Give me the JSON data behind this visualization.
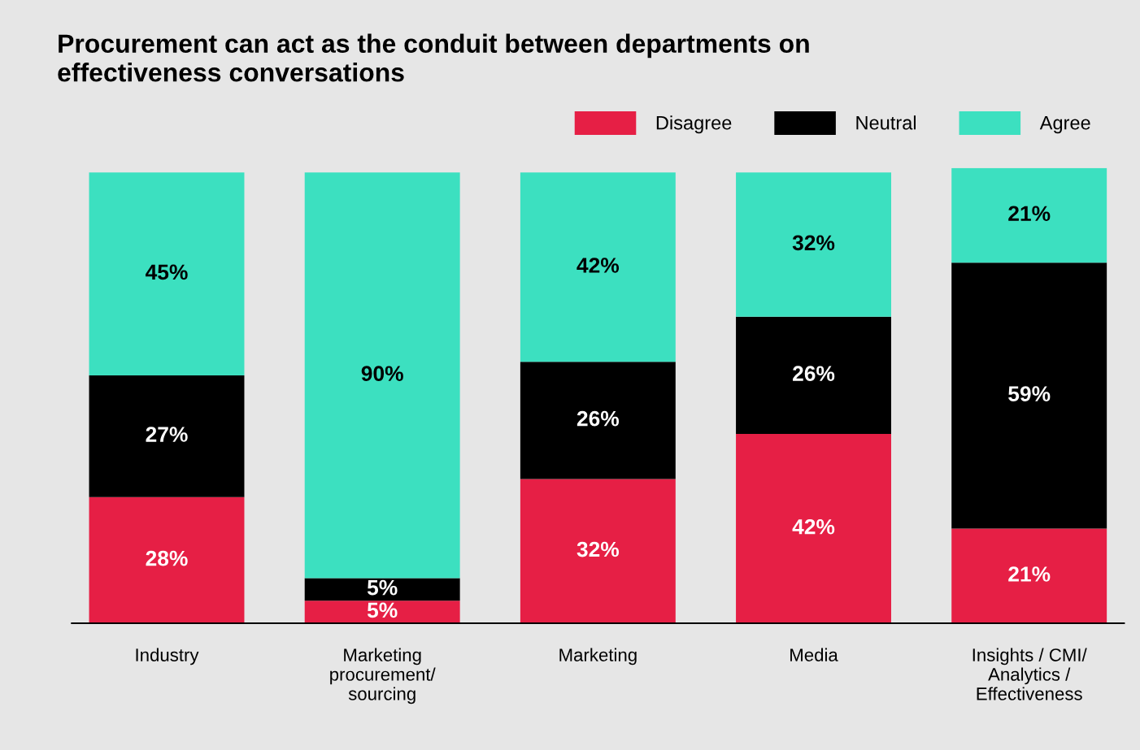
{
  "chart_data": {
    "type": "bar",
    "title": "Procurement can act as the conduit between departments on\neffectiveness conversations",
    "categories": [
      "Industry",
      "Marketing\nprocurement/\nsourcing",
      "Marketing",
      "Media",
      "Insights / CMI/\nAnalytics /\nEffectiveness"
    ],
    "stacked": true,
    "legend": "top right",
    "grid": false,
    "series": [
      {
        "name": "Disagree",
        "color": "#e61f45",
        "values": [
          28,
          5,
          32,
          42,
          21
        ],
        "value_labels": [
          "28%",
          "5%",
          "32%",
          "42%",
          "21%"
        ]
      },
      {
        "name": "Neutral",
        "color": "#000000",
        "values": [
          27,
          5,
          26,
          26,
          59
        ],
        "value_labels": [
          "27%",
          "5%",
          "26%",
          "26%",
          "59%"
        ]
      },
      {
        "name": "Agree",
        "color": "#3ce0c0",
        "values": [
          45,
          90,
          42,
          32,
          21
        ],
        "value_labels": [
          "45%",
          "90%",
          "42%",
          "32%",
          "21%"
        ]
      }
    ]
  }
}
